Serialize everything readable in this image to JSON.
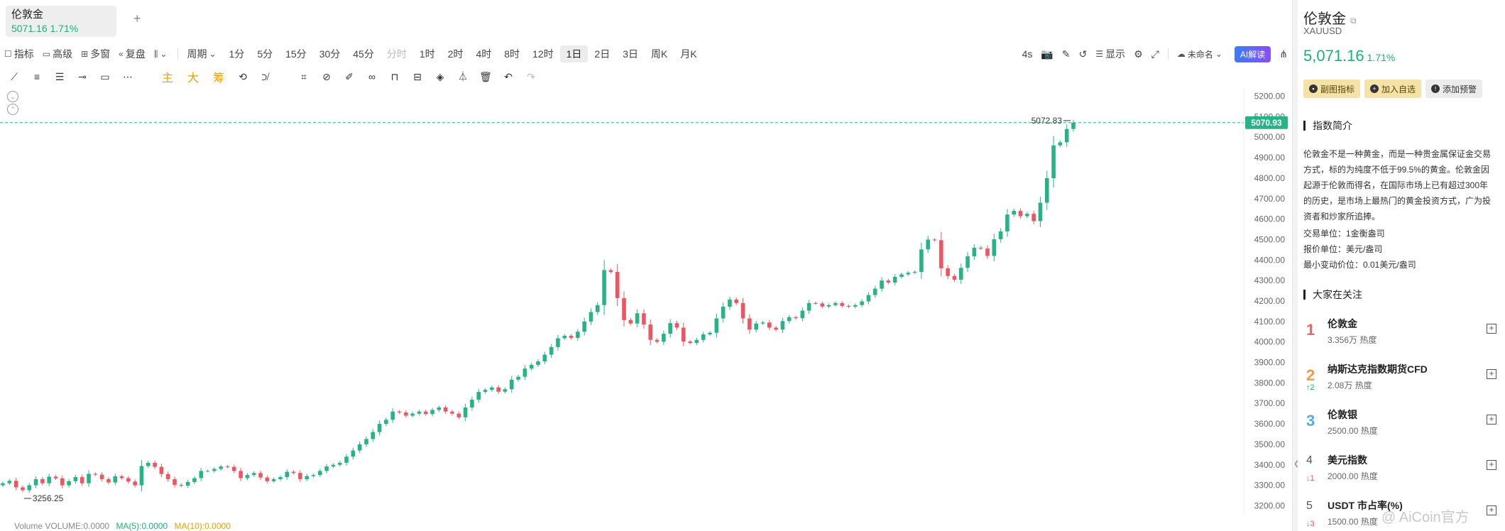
{
  "tab": {
    "title": "伦敦金",
    "quote": "5071.16  1.71%",
    "add_label": "+"
  },
  "toolbar": {
    "indicator": "指标",
    "advanced": "高级",
    "multi_window": "多窗",
    "replay": "复盘",
    "chart_type_icon": "chart-type-icon",
    "period_label": "周期",
    "periods": [
      "1分",
      "5分",
      "15分",
      "30分",
      "45分",
      "分时",
      "1时",
      "2时",
      "4时",
      "8时",
      "12时",
      "1日",
      "2日",
      "3日",
      "周K",
      "月K"
    ],
    "active_period": "1日",
    "disabled_period": "分时",
    "countdown": "4s",
    "display": "显示",
    "layout_name": "未命名",
    "ai_label": "AI解读"
  },
  "drawing_tools": {
    "text_tools": [
      "主",
      "大",
      "筹"
    ]
  },
  "chart_data": {
    "type": "candlestick",
    "symbol": "XAUUSD",
    "y_axis_ticks": [
      5200,
      5100,
      5000,
      4900,
      4800,
      4700,
      4600,
      4500,
      4400,
      4300,
      4200,
      4100,
      4000,
      3900,
      3800,
      3700,
      3600,
      3500,
      3400,
      3300,
      3200
    ],
    "ylim": [
      3160,
      5240
    ],
    "current_price": "5070.93",
    "high_marker": "5072.83",
    "low_marker": "3256.25",
    "up_color": "#26b386",
    "down_color": "#ef5461",
    "closes": [
      3310,
      3322,
      3290,
      3276,
      3300,
      3330,
      3310,
      3342,
      3334,
      3300,
      3320,
      3340,
      3310,
      3356,
      3352,
      3330,
      3314,
      3344,
      3335,
      3318,
      3300,
      3394,
      3410,
      3390,
      3355,
      3330,
      3302,
      3298,
      3316,
      3335,
      3370,
      3370,
      3380,
      3392,
      3390,
      3370,
      3335,
      3350,
      3360,
      3338,
      3320,
      3330,
      3340,
      3366,
      3360,
      3330,
      3345,
      3350,
      3370,
      3392,
      3400,
      3410,
      3440,
      3470,
      3500,
      3526,
      3560,
      3600,
      3620,
      3660,
      3656,
      3640,
      3650,
      3660,
      3648,
      3668,
      3680,
      3660,
      3650,
      3632,
      3680,
      3718,
      3756,
      3766,
      3778,
      3757,
      3769,
      3816,
      3830,
      3870,
      3888,
      3905,
      3938,
      3975,
      4018,
      4030,
      4020,
      4050,
      4100,
      4146,
      4180,
      4351,
      4342,
      4214,
      4107,
      4090,
      4140,
      4085,
      4010,
      4001,
      4040,
      4092,
      4070,
      4002,
      3995,
      4010,
      4037,
      4045,
      4115,
      4172,
      4207,
      4190,
      4115,
      4060,
      4090,
      4095,
      4070,
      4060,
      4102,
      4121,
      4116,
      4153,
      4190,
      4188,
      4173,
      4180,
      4190,
      4176,
      4172,
      4180,
      4198,
      4229,
      4260,
      4300,
      4290,
      4318,
      4330,
      4338,
      4342,
      4452,
      4500,
      4497,
      4360,
      4322,
      4304,
      4362,
      4418,
      4460,
      4456,
      4420,
      4502,
      4540,
      4622,
      4640,
      4614,
      4626,
      4590,
      4680,
      4800,
      4960,
      4975,
      5040,
      5070.93
    ],
    "volume_legend": {
      "label": "Volume",
      "volume": "VOLUME:0.0000",
      "ma5": "MA(5):0.0000",
      "ma10": "MA(10):0.0000"
    }
  },
  "panel": {
    "title": "伦敦金",
    "symbol": "XAUUSD",
    "price": "5,071.16",
    "pct": "1.71%",
    "btn_sub_chart": "副图指标",
    "btn_watchlist": "加入自选",
    "btn_alert": "添加预警",
    "intro_heading": "指数简介",
    "intro_text": "伦敦金不是一种黄金，而是一种贵金属保证金交易方式，标的为纯度不低于99.5%的黄金。伦敦金因起源于伦敦而得名，在国际市场上已有超过300年的历史，是市场上最热门的黄金投资方式，广为投资者和炒家所追捧。",
    "trade_unit": "交易单位：1金衡盎司",
    "quote_unit": "报价单位：美元/盎司",
    "min_tick": "最小变动价位：0.01美元/盎司",
    "watch_heading": "大家在关注",
    "watch": [
      {
        "rank": "1",
        "change": "",
        "dir": "",
        "name": "伦敦金",
        "heat": "3.356万 热度"
      },
      {
        "rank": "2",
        "change": "↑2",
        "dir": "up",
        "name": "纳斯达克指数期货CFD",
        "heat": "2.08万 热度"
      },
      {
        "rank": "3",
        "change": "",
        "dir": "",
        "name": "伦敦银",
        "heat": "2500.00 热度"
      },
      {
        "rank": "4",
        "change": "↓1",
        "dir": "down",
        "name": "美元指数",
        "heat": "2000.00 热度"
      },
      {
        "rank": "5",
        "change": "↓3",
        "dir": "down",
        "name": "USDT 市占率(%)",
        "heat": "1500.00 热度"
      }
    ],
    "watermark": "@ AiCoin官方"
  }
}
